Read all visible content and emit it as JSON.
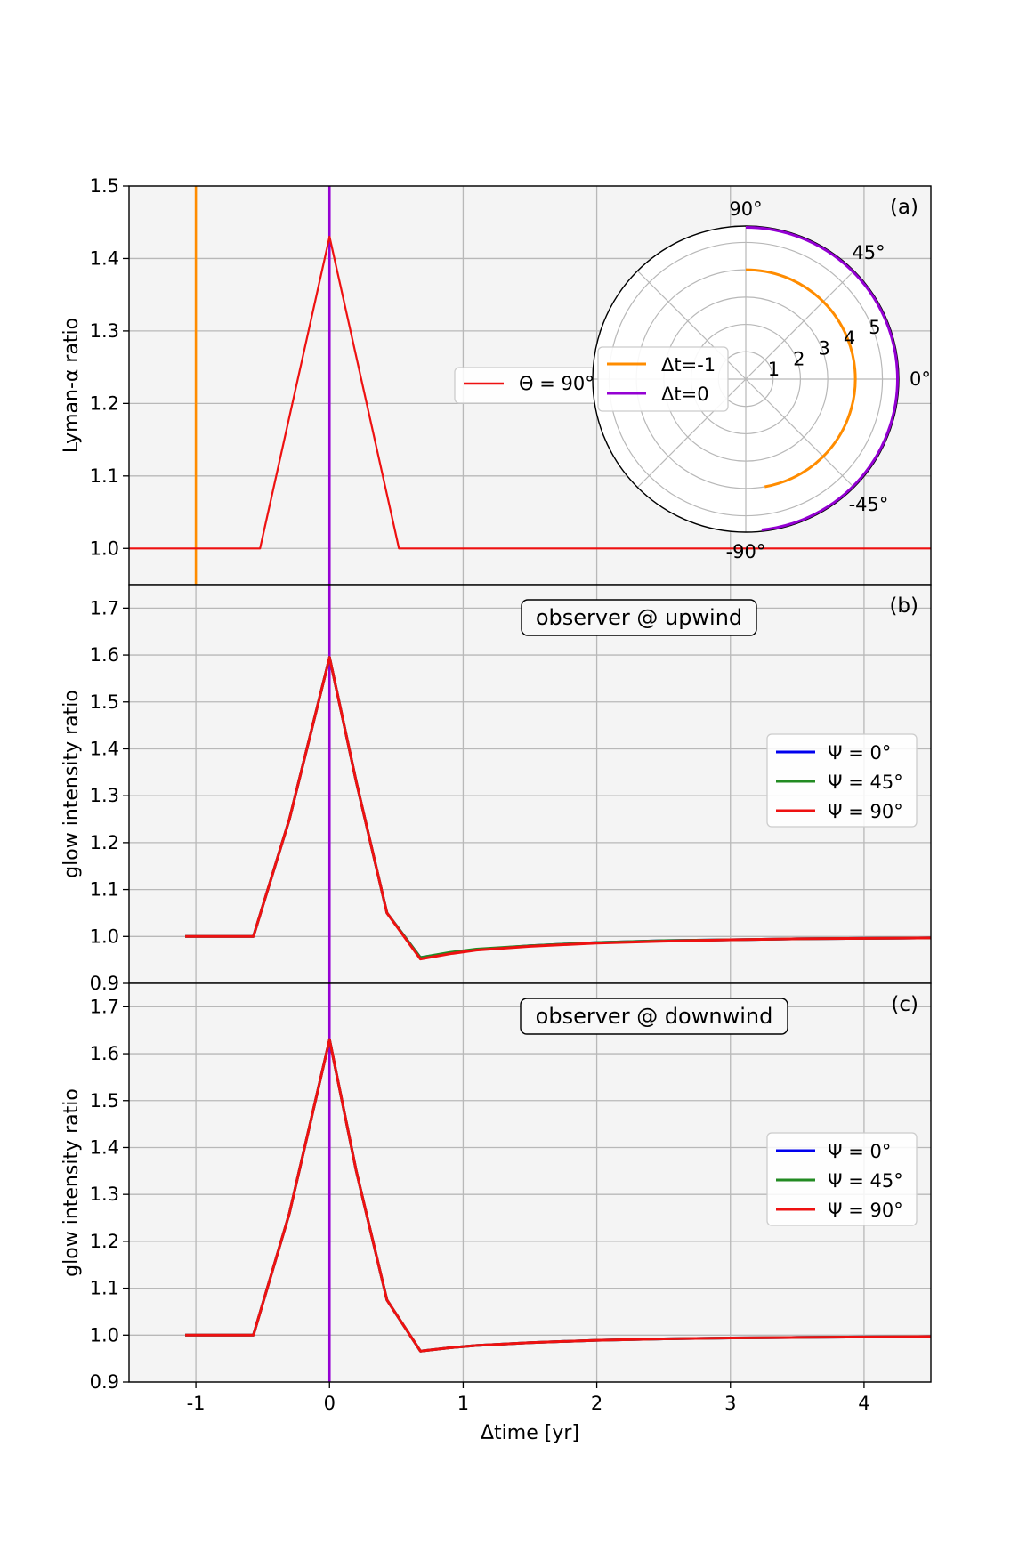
{
  "colors": {
    "orange": "#ff8c00",
    "purple": "#9400d3",
    "red": "#ee1111",
    "blue": "#0000ee",
    "green": "#228b22",
    "panel_bg": "#f4f4f4",
    "grid": "#b8b8b8"
  },
  "chart_data": [
    {
      "id": "a",
      "type": "line",
      "panel_tag": "(a)",
      "ylabel": "Lyman-α ratio",
      "xlim": [
        -1.5,
        4.5
      ],
      "ylim": [
        0.95,
        1.5
      ],
      "yticks": [
        1.0,
        1.1,
        1.2,
        1.3,
        1.4,
        1.5
      ],
      "ytick_labels": [
        "1.0",
        "1.1",
        "1.2",
        "1.3",
        "1.4",
        "1.5"
      ],
      "grid": true,
      "vlines": [
        {
          "x": -1,
          "color": "orange",
          "name": "Δt=-1"
        },
        {
          "x": 0,
          "color": "purple",
          "name": "Δt=0"
        }
      ],
      "series": [
        {
          "name": "Θ = 90°",
          "legend_label": "Θ = 90°",
          "color": "red",
          "x": [
            -1.5,
            -0.52,
            0,
            0.52,
            4.5
          ],
          "y": [
            1.0,
            1.0,
            1.43,
            1.0,
            1.0
          ]
        }
      ],
      "legend": {
        "position": "center-right",
        "entries": [
          "Θ = 90°"
        ]
      },
      "inset_polar": {
        "theta_labels": [
          "90°",
          "45°",
          "0°",
          "-45°",
          "-90°"
        ],
        "r_labels": [
          "1",
          "2",
          "3",
          "4",
          "5"
        ],
        "rmax": 5.6,
        "arcs": [
          {
            "name": "Δt=-1",
            "color": "orange",
            "r": 4.0,
            "theta_from": -80,
            "theta_to": 90
          },
          {
            "name": "Δt=0",
            "color": "purple",
            "r": 5.55,
            "theta_from": -84,
            "theta_to": 90
          }
        ],
        "legend": [
          "Δt=-1",
          "Δt=0"
        ]
      }
    },
    {
      "id": "b",
      "type": "line",
      "panel_tag": "(b)",
      "annotation": "observer @ upwind",
      "ylabel": "glow intensity ratio",
      "xlim": [
        -1.5,
        4.5
      ],
      "ylim": [
        0.9,
        1.75
      ],
      "yticks": [
        0.9,
        1.0,
        1.1,
        1.2,
        1.3,
        1.4,
        1.5,
        1.6,
        1.7
      ],
      "ytick_labels": [
        "0.9",
        "1.0",
        "1.1",
        "1.2",
        "1.3",
        "1.4",
        "1.5",
        "1.6",
        "1.7"
      ],
      "grid": true,
      "vlines": [
        {
          "x": 0,
          "color": "purple"
        }
      ],
      "series": [
        {
          "name": "Ψ = 0°",
          "color": "blue",
          "x": [
            -1.08,
            -0.57,
            -0.3,
            0,
            0.2,
            0.43,
            0.68,
            0.9,
            1.1,
            1.5,
            2,
            2.5,
            3,
            3.5,
            4,
            4.5
          ],
          "y": [
            1.0,
            1.0,
            1.25,
            1.595,
            1.33,
            1.05,
            0.955,
            0.965,
            0.972,
            0.98,
            0.987,
            0.991,
            0.993,
            0.995,
            0.996,
            0.997
          ]
        },
        {
          "name": "Ψ = 45°",
          "color": "green",
          "x": [
            -1.08,
            -0.57,
            -0.3,
            0,
            0.2,
            0.43,
            0.68,
            0.9,
            1.1,
            1.5,
            2,
            2.5,
            3,
            3.5,
            4,
            4.5
          ],
          "y": [
            1.0,
            1.0,
            1.25,
            1.595,
            1.33,
            1.05,
            0.955,
            0.966,
            0.973,
            0.98,
            0.987,
            0.991,
            0.993,
            0.995,
            0.996,
            0.997
          ]
        },
        {
          "name": "Ψ = 90°",
          "color": "red",
          "x": [
            -1.08,
            -0.57,
            -0.3,
            0,
            0.2,
            0.43,
            0.68,
            0.9,
            1.1,
            1.5,
            2,
            2.5,
            3,
            3.5,
            4,
            4.5
          ],
          "y": [
            1.0,
            1.0,
            1.25,
            1.595,
            1.33,
            1.05,
            0.952,
            0.963,
            0.971,
            0.979,
            0.986,
            0.99,
            0.993,
            0.995,
            0.996,
            0.997
          ]
        }
      ],
      "legend": {
        "position": "center-right",
        "entries": [
          "Ψ = 0°",
          "Ψ = 45°",
          "Ψ = 90°"
        ]
      }
    },
    {
      "id": "c",
      "type": "line",
      "panel_tag": "(c)",
      "annotation": "observer @ downwind",
      "ylabel": "glow intensity ratio",
      "xlabel": "Δtime [yr]",
      "xlim": [
        -1.5,
        4.5
      ],
      "xticks": [
        -1,
        0,
        1,
        2,
        3,
        4
      ],
      "xtick_labels": [
        "-1",
        "0",
        "1",
        "2",
        "3",
        "4"
      ],
      "ylim": [
        0.9,
        1.75
      ],
      "yticks": [
        0.9,
        1.0,
        1.1,
        1.2,
        1.3,
        1.4,
        1.5,
        1.6,
        1.7
      ],
      "ytick_labels": [
        "0.9",
        "1.0",
        "1.1",
        "1.2",
        "1.3",
        "1.4",
        "1.5",
        "1.6",
        "1.7"
      ],
      "grid": true,
      "vlines": [
        {
          "x": 0,
          "color": "purple"
        }
      ],
      "series": [
        {
          "name": "Ψ = 0°",
          "color": "blue",
          "x": [
            -1.08,
            -0.57,
            -0.3,
            0,
            0.2,
            0.43,
            0.68,
            0.9,
            1.1,
            1.5,
            2,
            2.5,
            3,
            3.5,
            4,
            4.5
          ],
          "y": [
            1.0,
            1.0,
            1.26,
            1.63,
            1.35,
            1.075,
            0.966,
            0.973,
            0.978,
            0.984,
            0.989,
            0.992,
            0.994,
            0.995,
            0.996,
            0.997
          ]
        },
        {
          "name": "Ψ = 45°",
          "color": "green",
          "x": [
            -1.08,
            -0.57,
            -0.3,
            0,
            0.2,
            0.43,
            0.68,
            0.9,
            1.1,
            1.5,
            2,
            2.5,
            3,
            3.5,
            4,
            4.5
          ],
          "y": [
            1.0,
            1.0,
            1.26,
            1.63,
            1.35,
            1.075,
            0.966,
            0.973,
            0.978,
            0.984,
            0.989,
            0.992,
            0.994,
            0.995,
            0.996,
            0.997
          ]
        },
        {
          "name": "Ψ = 90°",
          "color": "red",
          "x": [
            -1.08,
            -0.57,
            -0.3,
            0,
            0.2,
            0.43,
            0.68,
            0.9,
            1.1,
            1.5,
            2,
            2.5,
            3,
            3.5,
            4,
            4.5
          ],
          "y": [
            1.0,
            1.0,
            1.26,
            1.63,
            1.35,
            1.075,
            0.966,
            0.973,
            0.978,
            0.984,
            0.989,
            0.992,
            0.994,
            0.995,
            0.996,
            0.997
          ]
        }
      ],
      "legend": {
        "position": "center-right",
        "entries": [
          "Ψ = 0°",
          "Ψ = 45°",
          "Ψ = 90°"
        ]
      }
    }
  ]
}
